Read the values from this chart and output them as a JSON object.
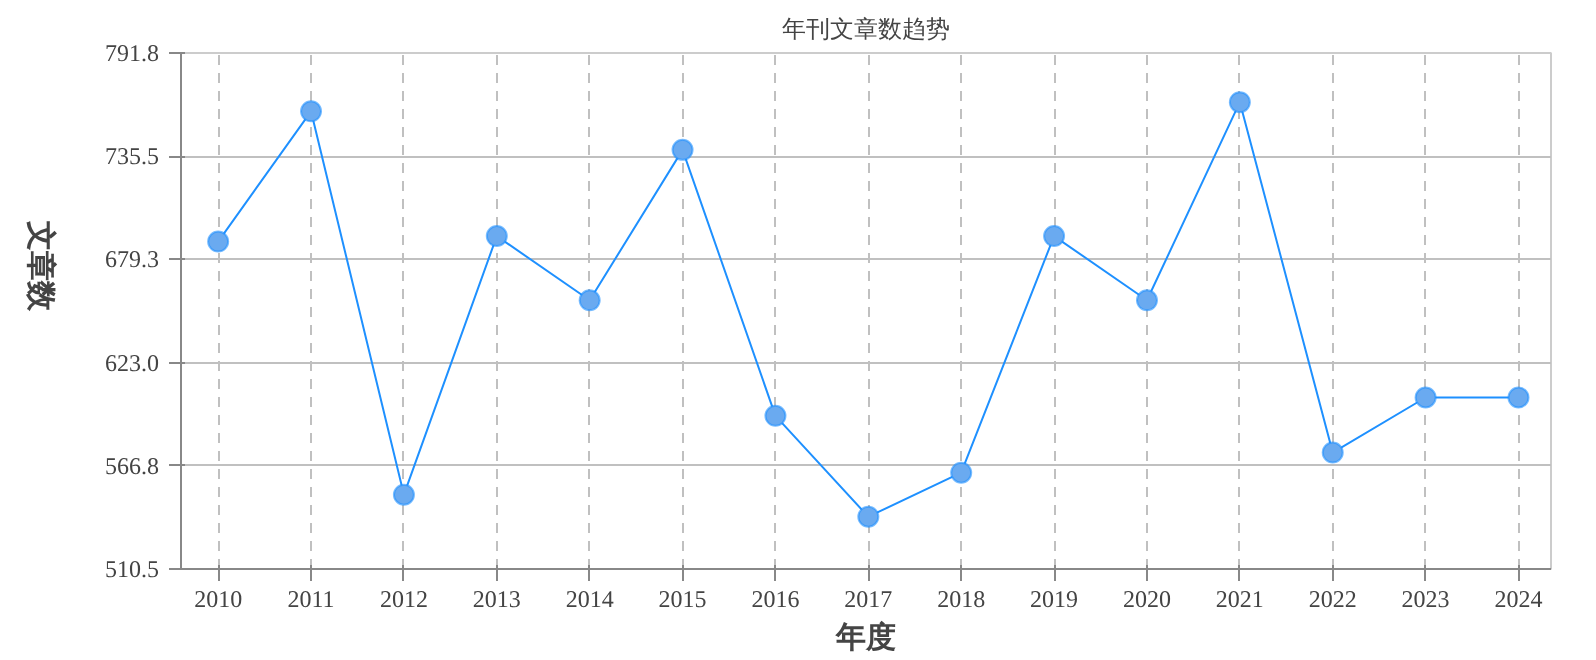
{
  "chart_data": {
    "type": "line",
    "title": "年刊文章数趋势",
    "xlabel": "年度",
    "ylabel": "文章数",
    "categories": [
      "2010",
      "2011",
      "2012",
      "2013",
      "2014",
      "2015",
      "2016",
      "2017",
      "2018",
      "2019",
      "2020",
      "2021",
      "2022",
      "2023",
      "2024"
    ],
    "series": [
      {
        "color": "#1e90ff",
        "values": [
          689,
          760,
          551,
          692,
          657,
          739,
          594,
          539,
          563,
          692,
          657,
          765,
          574,
          604,
          604
        ]
      }
    ],
    "ylim": [
      510.5,
      791.8
    ],
    "yticks": [
      510.5,
      566.8,
      {
        "value": 623,
        "label": "623.0"
      },
      679.3,
      735.5,
      791.8
    ],
    "grid": true,
    "marker": "circle",
    "line_style": "solid"
  }
}
